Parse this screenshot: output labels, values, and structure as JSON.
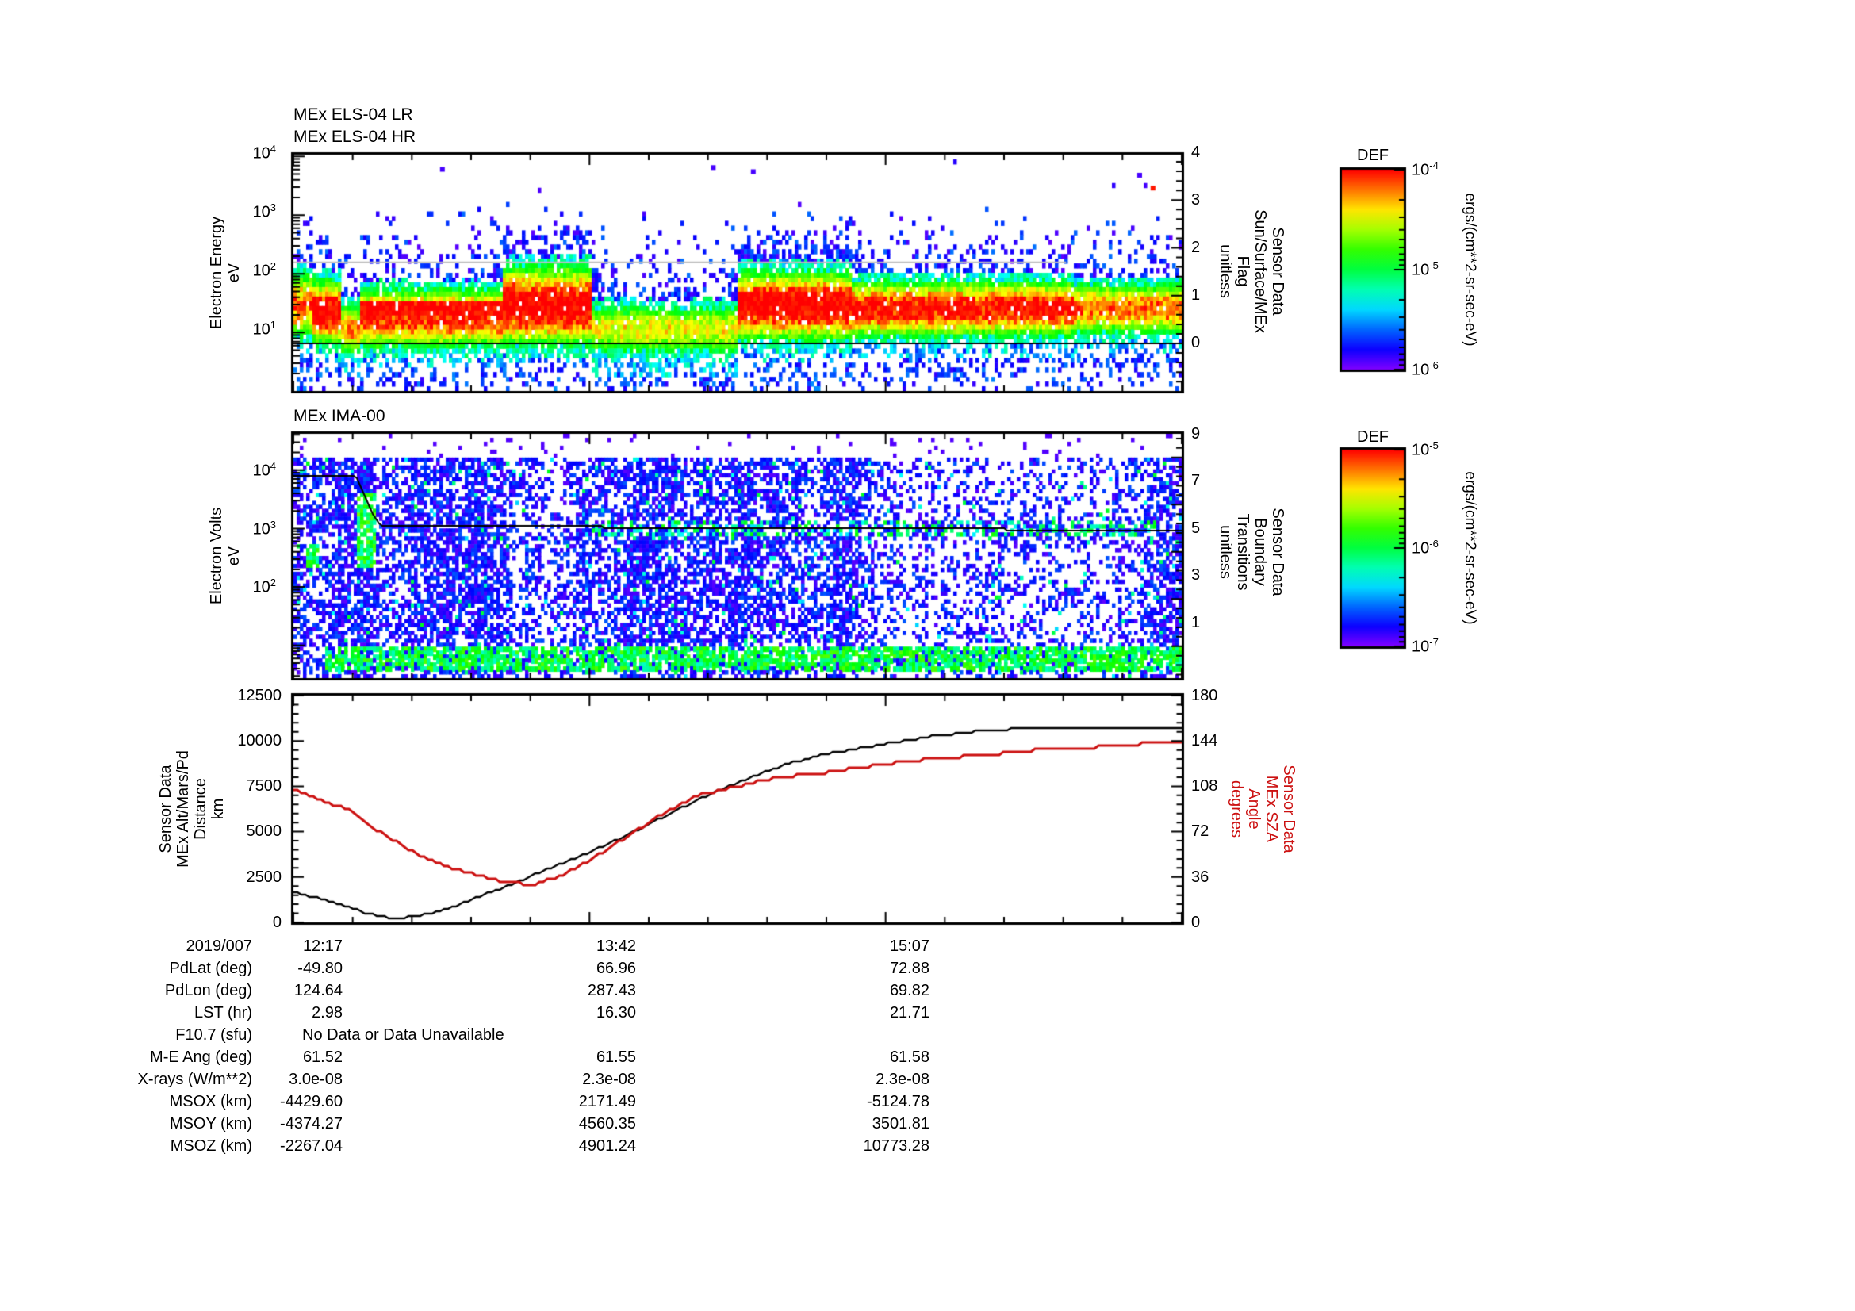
{
  "title_block": {
    "els_title_lr": "MEx ELS-04 LR",
    "els_title_hr": "MEx ELS-04 HR",
    "ima_title": "MEx IMA-00"
  },
  "colors": {
    "accent_red": "#cc1111",
    "line_black": "#000000",
    "flag_gray": "#bdbdbd",
    "background": "#ffffff"
  },
  "els_panel": {
    "y_label_lines": [
      "Electron Energy",
      "eV"
    ],
    "y_ticks": [
      "10^4",
      "10^3",
      "10^2",
      "10^1"
    ],
    "right_label_lines": [
      "Sensor Data",
      "Sun/Surface/MEx",
      "Flag",
      "unitless"
    ],
    "right_ticks": [
      "4",
      "3",
      "2",
      "1",
      "0"
    ]
  },
  "ima_panel": {
    "y_label_lines": [
      "Electron Volts",
      "eV"
    ],
    "y_ticks": [
      "10^4",
      "10^3",
      "10^2"
    ],
    "right_label_lines": [
      "Sensor Data",
      "Boundary",
      "Transitions",
      "unitless"
    ],
    "right_ticks": [
      "9",
      "7",
      "5",
      "3",
      "1"
    ]
  },
  "orbit_panel": {
    "y_label_lines": [
      "Sensor Data",
      "MEx Alt/Mars/Pd",
      "Distance",
      "km"
    ],
    "y_ticks": [
      "12500",
      "10000",
      "7500",
      "5000",
      "2500",
      "0"
    ],
    "right_label_lines": [
      "Sensor Data",
      "MEx SZA",
      "Angle",
      "degrees"
    ],
    "right_ticks": [
      "180",
      "144",
      "108",
      "72",
      "36",
      "0"
    ]
  },
  "colorbars": [
    {
      "title": "DEF",
      "ticks": [
        "10^-4",
        "10^-5",
        "10^-6"
      ],
      "units": "ergs/(cm**2-sr-sec-eV)"
    },
    {
      "title": "DEF",
      "ticks": [
        "10^-5",
        "10^-6",
        "10^-7"
      ],
      "units": "ergs/(cm**2-sr-sec-eV)"
    }
  ],
  "table": {
    "rows": [
      {
        "label": "2019/007",
        "values": [
          "12:17",
          "13:42",
          "15:07"
        ]
      },
      {
        "label": "PdLat (deg)",
        "values": [
          "-49.80",
          "66.96",
          "72.88"
        ]
      },
      {
        "label": "PdLon (deg)",
        "values": [
          "124.64",
          "287.43",
          "69.82"
        ]
      },
      {
        "label": "LST (hr)",
        "values": [
          "2.98",
          "16.30",
          "21.71"
        ]
      },
      {
        "label": "F10.7 (sfu)",
        "span": "No Data or Data Unavailable",
        "values": []
      },
      {
        "label": "M-E Ang (deg)",
        "values": [
          "61.52",
          "61.55",
          "61.58"
        ]
      },
      {
        "label": "X-rays (W/m**2)",
        "values": [
          "3.0e-08",
          "2.3e-08",
          "2.3e-08"
        ]
      },
      {
        "label": "MSOX (km)",
        "values": [
          "-4429.60",
          "2171.49",
          "-5124.78"
        ]
      },
      {
        "label": "MSOY (km)",
        "values": [
          "-4374.27",
          "4560.35",
          "3501.81"
        ]
      },
      {
        "label": "MSOZ (km)",
        "values": [
          "-2267.04",
          "4901.24",
          "10773.28"
        ]
      }
    ]
  },
  "chart_data": [
    {
      "type": "heatmap",
      "title": "MEx ELS-04 LR / MEx ELS-04 HR",
      "x": {
        "date": "2019/007",
        "tick_labels": [
          "12:17",
          "13:42",
          "15:07"
        ],
        "minutes_span": 255,
        "minor_step_min": 17
      },
      "y": {
        "label": "Electron Energy eV",
        "scale": "log",
        "range_log10": [
          0,
          4
        ]
      },
      "z": {
        "label": "DEF ergs/(cm**2-sr-sec-eV)",
        "scale": "log",
        "range": [
          1e-06,
          0.0001
        ]
      },
      "flag_overlay": {
        "label": "Sensor Data Sun/Surface/MEx Flag unitless",
        "range": [
          0,
          4
        ],
        "lines": [
          {
            "value": 1.7,
            "t": [
              0,
              0.87
            ],
            "color": "#bdbdbd"
          },
          {
            "value": 0.0,
            "t": [
              0,
              1.0
            ],
            "color": "#000000"
          }
        ]
      },
      "band_segments": [
        [
          0.0,
          0.02,
          1.45,
          0.55,
          0.8,
          0
        ],
        [
          0.02,
          0.055,
          1.35,
          0.52,
          1.0,
          0
        ],
        [
          0.055,
          0.075,
          1.05,
          0.45,
          0.72,
          0
        ],
        [
          0.075,
          0.235,
          1.25,
          0.5,
          0.88,
          1
        ],
        [
          0.235,
          0.335,
          1.45,
          0.65,
          1.0,
          0
        ],
        [
          0.335,
          0.5,
          1.05,
          0.45,
          0.62,
          0
        ],
        [
          0.5,
          0.63,
          1.45,
          0.58,
          0.97,
          0
        ],
        [
          0.63,
          0.88,
          1.4,
          0.47,
          0.92,
          0
        ],
        [
          0.88,
          1.001,
          1.4,
          0.44,
          0.78,
          0
        ]
      ],
      "halo_boost": [
        [
          0.23,
          0.35
        ],
        [
          0.49,
          0.64
        ]
      ],
      "isolated_dots": [
        [
          0.006,
          1.45,
          0.97
        ],
        [
          0.165,
          3.82,
          0.05
        ],
        [
          0.47,
          3.85,
          0.05
        ],
        [
          0.515,
          3.78,
          0.05
        ],
        [
          0.95,
          3.72,
          0.05
        ],
        [
          0.965,
          3.5,
          0.98
        ]
      ]
    },
    {
      "type": "heatmap",
      "title": "MEx IMA-00",
      "y": {
        "label": "Electron Volts eV",
        "scale": "log",
        "range_log10": [
          0.45,
          4.6
        ]
      },
      "z": {
        "label": "DEF ergs/(cm**2-sr-sec-eV)",
        "scale": "log",
        "range": [
          1e-07,
          1e-05
        ]
      },
      "boundary_overlay": {
        "label": "Sensor Data Boundary Transitions unitless",
        "range": [
          1,
          9
        ],
        "line_points": [
          [
            0,
            7.2
          ],
          [
            0.07,
            7.2
          ],
          [
            0.078,
            6.6
          ],
          [
            0.088,
            5.7
          ],
          [
            0.098,
            5.15
          ],
          [
            0.35,
            5.05
          ],
          [
            0.6,
            5.0
          ],
          [
            0.8,
            4.95
          ],
          [
            1,
            4.9
          ]
        ]
      },
      "features": {
        "green_blobs": [
          [
            0.013,
            0.028,
            2.3,
            2.75
          ],
          [
            0.071,
            0.092,
            2.35,
            3.6
          ]
        ],
        "bottom_band": [
          0.035,
          1.0,
          0.55,
          1.0
        ],
        "line_dashes": [
          0.33,
          0.97,
          2.9,
          3.14
        ]
      }
    },
    {
      "type": "line",
      "x": {
        "date": "2019/007",
        "tick_labels": [
          "12:17",
          "13:42",
          "15:07"
        ],
        "minutes_span": 255
      },
      "series": [
        {
          "name": "MEx Alt/Mars/Pd Distance",
          "units": "km",
          "axis": "left",
          "color": "#000000",
          "ylim": [
            0,
            12500
          ],
          "points": [
            [
              0,
              1650
            ],
            [
              0.03,
              1300
            ],
            [
              0.06,
              900
            ],
            [
              0.08,
              550
            ],
            [
              0.1,
              300
            ],
            [
              0.12,
              250
            ],
            [
              0.14,
              350
            ],
            [
              0.17,
              700
            ],
            [
              0.2,
              1250
            ],
            [
              0.24,
              2000
            ],
            [
              0.28,
              2800
            ],
            [
              0.32,
              3600
            ],
            [
              0.36,
              4450
            ],
            [
              0.4,
              5400
            ],
            [
              0.44,
              6400
            ],
            [
              0.48,
              7300
            ],
            [
              0.52,
              8100
            ],
            [
              0.56,
              8800
            ],
            [
              0.6,
              9280
            ],
            [
              0.66,
              9790
            ],
            [
              0.72,
              10265
            ],
            [
              0.78,
              10580
            ],
            [
              0.84,
              10730
            ],
            [
              0.9,
              10760
            ],
            [
              1.0,
              10760
            ]
          ]
        },
        {
          "name": "MEx SZA Angle",
          "units": "degrees",
          "axis": "right",
          "color": "#cc1111",
          "ylim": [
            0,
            180
          ],
          "points": [
            [
              0,
              106
            ],
            [
              0.03,
              97
            ],
            [
              0.06,
              90
            ],
            [
              0.09,
              75
            ],
            [
              0.12,
              62
            ],
            [
              0.15,
              50
            ],
            [
              0.18,
              43
            ],
            [
              0.21,
              37
            ],
            [
              0.24,
              32
            ],
            [
              0.27,
              30
            ],
            [
              0.3,
              37
            ],
            [
              0.34,
              52
            ],
            [
              0.38,
              70
            ],
            [
              0.42,
              88
            ],
            [
              0.455,
              101
            ],
            [
              0.5,
              108
            ],
            [
              0.545,
              115
            ],
            [
              0.6,
              119
            ],
            [
              0.66,
              125
            ],
            [
              0.72,
              130
            ],
            [
              0.78,
              133
            ],
            [
              0.84,
              137
            ],
            [
              0.9,
              139
            ],
            [
              0.96,
              142
            ],
            [
              1.0,
              143
            ]
          ]
        }
      ]
    }
  ]
}
